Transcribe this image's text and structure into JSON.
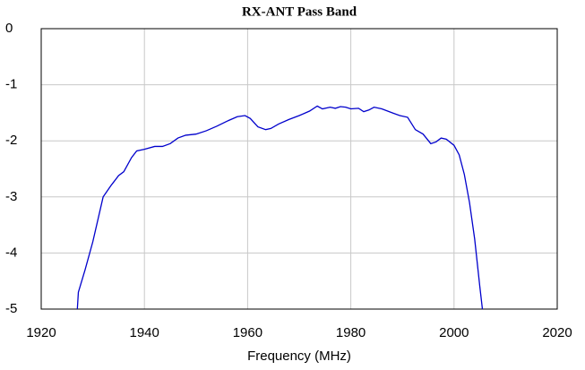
{
  "chart_data": {
    "type": "line",
    "title": "RX-ANT Pass Band",
    "xlabel": "Frequency (MHz)",
    "x": [
      1927,
      1927.2,
      1928.5,
      1930,
      1931,
      1932,
      1933.5,
      1935,
      1936,
      1937.5,
      1938.5,
      1940,
      1942,
      1943.5,
      1945,
      1946.5,
      1948,
      1950,
      1952,
      1954,
      1956,
      1958,
      1959.5,
      1960.5,
      1962,
      1963.5,
      1964.5,
      1966,
      1968,
      1970,
      1972,
      1973.5,
      1974.5,
      1976,
      1977,
      1978,
      1979,
      1980,
      1981.5,
      1982.5,
      1983.5,
      1984.5,
      1986,
      1988,
      1989.5,
      1991,
      1992.5,
      1994,
      1995.5,
      1996.5,
      1997.5,
      1998.5,
      2000,
      2001,
      2002,
      2003,
      2004,
      2005,
      2005.5
    ],
    "series": [
      {
        "name": "RX-ANT",
        "color": "#0000cc",
        "values": [
          -5,
          -4.7,
          -4.3,
          -3.8,
          -3.4,
          -3.0,
          -2.8,
          -2.62,
          -2.55,
          -2.3,
          -2.18,
          -2.15,
          -2.1,
          -2.1,
          -2.05,
          -1.95,
          -1.9,
          -1.88,
          -1.82,
          -1.74,
          -1.65,
          -1.57,
          -1.55,
          -1.6,
          -1.75,
          -1.8,
          -1.78,
          -1.7,
          -1.62,
          -1.55,
          -1.47,
          -1.38,
          -1.43,
          -1.4,
          -1.42,
          -1.39,
          -1.4,
          -1.43,
          -1.42,
          -1.48,
          -1.45,
          -1.4,
          -1.43,
          -1.5,
          -1.55,
          -1.58,
          -1.8,
          -1.88,
          -2.05,
          -2.02,
          -1.95,
          -1.97,
          -2.08,
          -2.25,
          -2.6,
          -3.1,
          -3.75,
          -4.6,
          -5.0
        ]
      }
    ],
    "xlim": [
      1920,
      2020
    ],
    "ylim": [
      -5,
      0
    ],
    "xticks": [
      1920,
      1940,
      1960,
      1980,
      2000,
      2020
    ],
    "yticks": [
      -5,
      -4,
      -3,
      -2,
      -1,
      0
    ],
    "grid": true
  }
}
